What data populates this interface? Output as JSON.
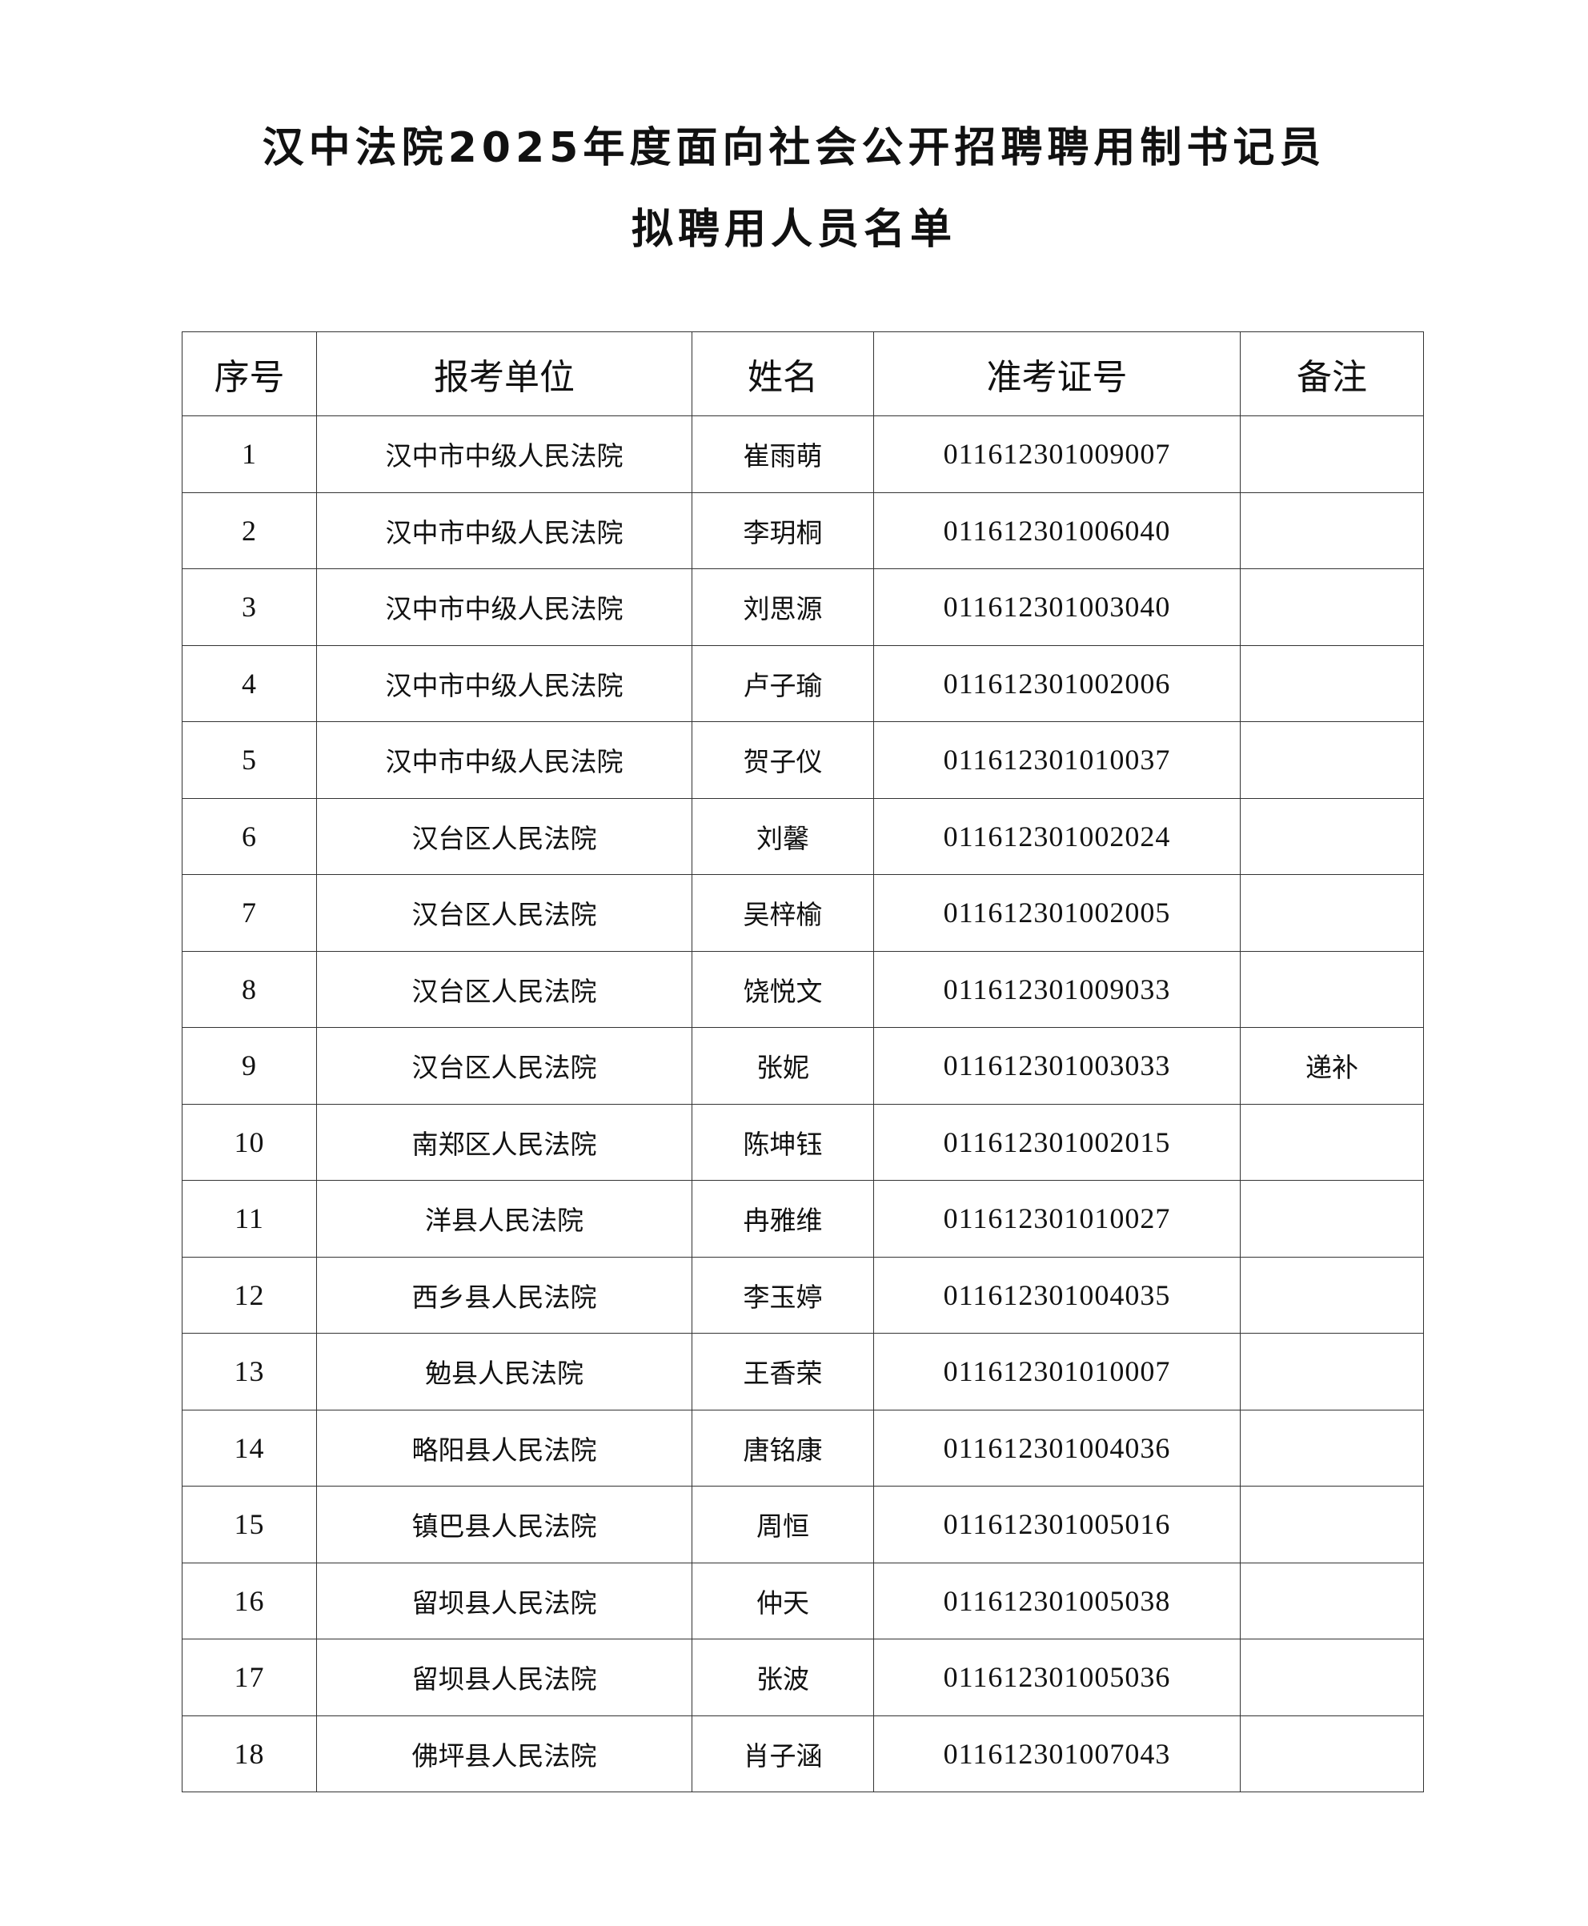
{
  "title": {
    "line1": "汉中法院2025年度面向社会公开招聘聘用制书记员",
    "line2": "拟聘用人员名单"
  },
  "table": {
    "headers": [
      "序号",
      "报考单位",
      "姓名",
      "准考证号",
      "备注"
    ],
    "rows": [
      [
        "1",
        "汉中市中级人民法院",
        "崔雨萌",
        "011612301009007",
        ""
      ],
      [
        "2",
        "汉中市中级人民法院",
        "李玥桐",
        "011612301006040",
        ""
      ],
      [
        "3",
        "汉中市中级人民法院",
        "刘思源",
        "011612301003040",
        ""
      ],
      [
        "4",
        "汉中市中级人民法院",
        "卢子瑜",
        "011612301002006",
        ""
      ],
      [
        "5",
        "汉中市中级人民法院",
        "贺子仪",
        "011612301010037",
        ""
      ],
      [
        "6",
        "汉台区人民法院",
        "刘馨",
        "011612301002024",
        ""
      ],
      [
        "7",
        "汉台区人民法院",
        "吴梓榆",
        "011612301002005",
        ""
      ],
      [
        "8",
        "汉台区人民法院",
        "饶悦文",
        "011612301009033",
        ""
      ],
      [
        "9",
        "汉台区人民法院",
        "张妮",
        "011612301003033",
        "递补"
      ],
      [
        "10",
        "南郑区人民法院",
        "陈坤钰",
        "011612301002015",
        ""
      ],
      [
        "11",
        "洋县人民法院",
        "冉雅维",
        "011612301010027",
        ""
      ],
      [
        "12",
        "西乡县人民法院",
        "李玉婷",
        "011612301004035",
        ""
      ],
      [
        "13",
        "勉县人民法院",
        "王香荣",
        "011612301010007",
        ""
      ],
      [
        "14",
        "略阳县人民法院",
        "唐铭康",
        "011612301004036",
        ""
      ],
      [
        "15",
        "镇巴县人民法院",
        "周恒",
        "011612301005016",
        ""
      ],
      [
        "16",
        "留坝县人民法院",
        "仲天",
        "011612301005038",
        ""
      ],
      [
        "17",
        "留坝县人民法院",
        "张波",
        "011612301005036",
        ""
      ],
      [
        "18",
        "佛坪县人民法院",
        "肖子涵",
        "011612301007043",
        ""
      ]
    ]
  }
}
